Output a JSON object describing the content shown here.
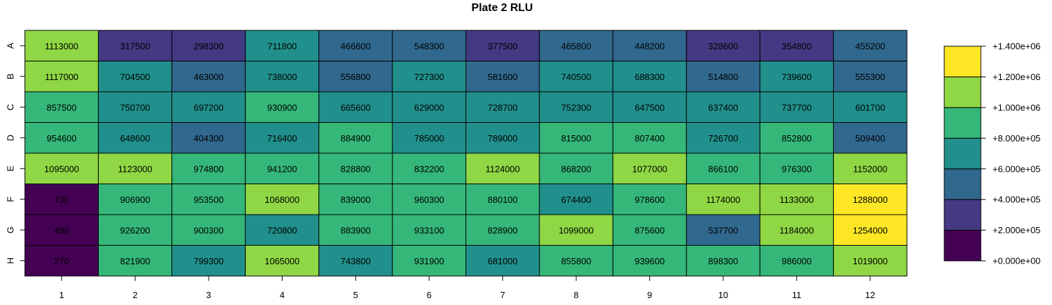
{
  "chart_data": {
    "type": "heatmap",
    "title": "Plate 2 RLU",
    "xlabel": "",
    "ylabel": "",
    "rows": [
      "A",
      "B",
      "C",
      "D",
      "E",
      "F",
      "G",
      "H"
    ],
    "columns": [
      "1",
      "2",
      "3",
      "4",
      "5",
      "6",
      "7",
      "8",
      "9",
      "10",
      "11",
      "12"
    ],
    "values": [
      [
        1113000,
        317500,
        298300,
        711800,
        466600,
        548300,
        377500,
        465800,
        448200,
        328600,
        354800,
        455200
      ],
      [
        1117000,
        704500,
        463000,
        738000,
        556800,
        727300,
        581600,
        740500,
        688300,
        514800,
        739600,
        555300
      ],
      [
        857500,
        750700,
        697200,
        930900,
        665600,
        629000,
        728700,
        752300,
        647500,
        637400,
        737700,
        601700
      ],
      [
        954600,
        648600,
        404300,
        716400,
        884900,
        785000,
        789000,
        815000,
        807400,
        726700,
        852800,
        509400
      ],
      [
        1095000,
        1123000,
        974800,
        941200,
        828800,
        832200,
        1124000,
        868200,
        1077000,
        866100,
        976300,
        1152000
      ],
      [
        730,
        906900,
        953500,
        1068000,
        839000,
        960300,
        880100,
        674400,
        978600,
        1174000,
        1133000,
        1288000
      ],
      [
        490,
        926200,
        900300,
        720800,
        883900,
        933100,
        828900,
        1099000,
        875600,
        537700,
        1184000,
        1254000
      ],
      [
        270,
        821900,
        799300,
        1065000,
        743800,
        931900,
        681000,
        855800,
        939600,
        898300,
        986000,
        1019000
      ]
    ],
    "color_scale": {
      "breaks": [
        0,
        200000,
        400000,
        600000,
        800000,
        1000000,
        1200000,
        1400000
      ],
      "colors": [
        "#440154",
        "#443983",
        "#31688E",
        "#21908C",
        "#35B779",
        "#8FD744",
        "#FDE725"
      ],
      "labels": [
        "+0.000e+00",
        "+2.000e+05",
        "+4.000e+05",
        "+6.000e+05",
        "+8.000e+05",
        "+1.000e+06",
        "+1.200e+06",
        "+1.400e+06"
      ]
    },
    "legend_position": "right"
  }
}
